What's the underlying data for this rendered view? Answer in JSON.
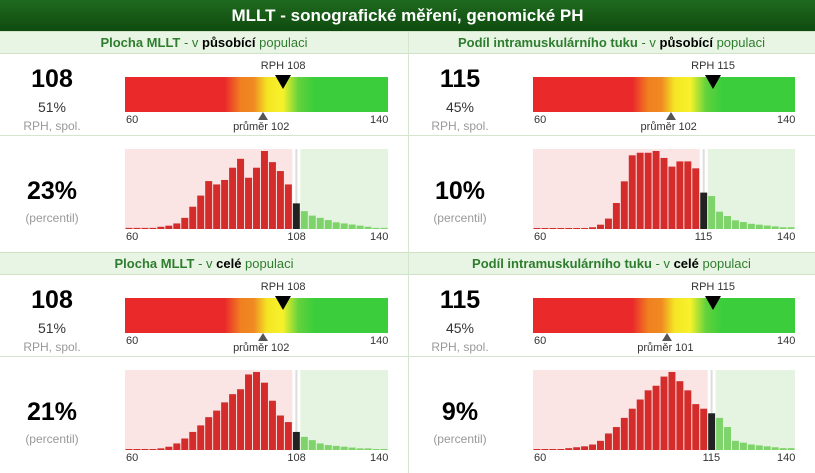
{
  "title": "MLLT - sonografické měření, genomické PH",
  "sections": [
    {
      "head": {
        "trait": "Plocha MLLT",
        "mid": " - v ",
        "pop": "působící",
        "suffix": " populaci"
      },
      "value": "108",
      "pct": "51%",
      "sub": "RPH, spol.",
      "rph": "RPH 108",
      "avg": "průměr 102",
      "min": "60",
      "max": "140",
      "percentile": "23%",
      "perc_label": "(percentil)",
      "hist_marker": "108"
    },
    {
      "head": {
        "trait": "Podíl intramuskulárního tuku",
        "mid": " - v ",
        "pop": "působící",
        "suffix": " populaci"
      },
      "value": "115",
      "pct": "45%",
      "sub": "RPH, spol.",
      "rph": "RPH 115",
      "avg": "průměr 102",
      "min": "60",
      "max": "140",
      "percentile": "10%",
      "perc_label": "(percentil)",
      "hist_marker": "115"
    },
    {
      "head": {
        "trait": "Plocha MLLT",
        "mid": " - v ",
        "pop": "celé",
        "suffix": " populaci"
      },
      "value": "108",
      "pct": "51%",
      "sub": "RPH, spol.",
      "rph": "RPH 108",
      "avg": "průměr 102",
      "min": "60",
      "max": "140",
      "percentile": "21%",
      "perc_label": "(percentil)",
      "hist_marker": "108"
    },
    {
      "head": {
        "trait": "Podíl intramuskulárního tuku",
        "mid": " - v ",
        "pop": "celé",
        "suffix": " populaci"
      },
      "value": "115",
      "pct": "45%",
      "sub": "RPH, spol.",
      "rph": "RPH 115",
      "avg": "průměr 101",
      "min": "60",
      "max": "140",
      "percentile": "9%",
      "perc_label": "(percentil)",
      "hist_marker": "115"
    }
  ],
  "gauges": [
    {
      "rph": 108,
      "avg": 102
    },
    {
      "rph": 115,
      "avg": 102
    },
    {
      "rph": 108,
      "avg": 102
    },
    {
      "rph": 115,
      "avg": 101
    }
  ],
  "histograms": [
    {
      "bars": [
        1,
        1,
        1,
        1,
        2,
        3,
        5,
        10,
        20,
        30,
        43,
        40,
        44,
        55,
        63,
        46,
        55,
        70,
        60,
        52,
        40,
        23,
        16,
        12,
        10,
        8,
        6,
        5,
        4,
        3,
        2,
        1,
        1
      ],
      "marker_index": 21
    },
    {
      "bars": [
        1,
        1,
        1,
        1,
        1,
        1,
        1,
        2,
        5,
        12,
        30,
        55,
        85,
        88,
        88,
        90,
        82,
        72,
        78,
        78,
        70,
        42,
        38,
        20,
        15,
        10,
        8,
        6,
        5,
        4,
        3,
        2,
        2
      ],
      "marker_index": 21
    },
    {
      "bars": [
        1,
        1,
        1,
        1,
        2,
        4,
        8,
        14,
        22,
        30,
        40,
        48,
        58,
        68,
        74,
        92,
        95,
        82,
        60,
        42,
        34,
        22,
        16,
        12,
        8,
        6,
        5,
        4,
        3,
        2,
        2,
        1,
        1
      ],
      "marker_index": 21
    },
    {
      "bars": [
        1,
        1,
        1,
        1,
        2,
        3,
        4,
        6,
        10,
        18,
        25,
        35,
        45,
        55,
        65,
        70,
        80,
        85,
        75,
        65,
        50,
        45,
        40,
        35,
        25,
        10,
        8,
        6,
        5,
        4,
        3,
        2,
        2
      ],
      "marker_index": 22
    }
  ],
  "colors": {
    "green": "#3ccd3c",
    "red": "#d42b2b",
    "bg_red": "#fbe4e4",
    "bg_green": "#e4f4e0",
    "marker": "#222222"
  }
}
